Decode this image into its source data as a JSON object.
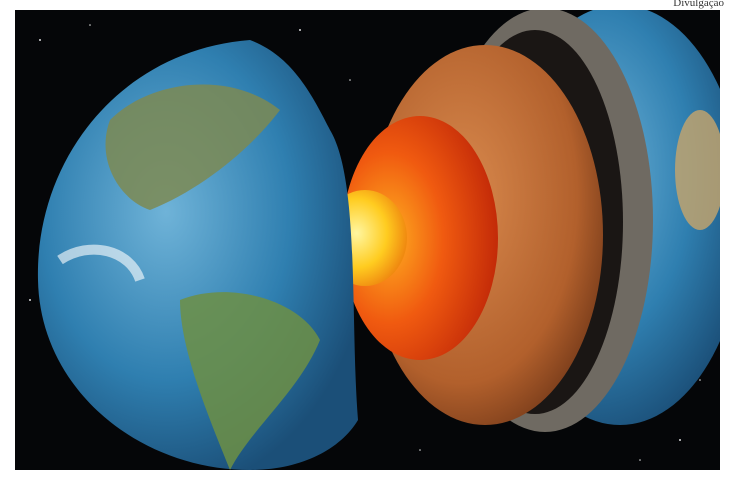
{
  "credit": "Divulgação"
}
